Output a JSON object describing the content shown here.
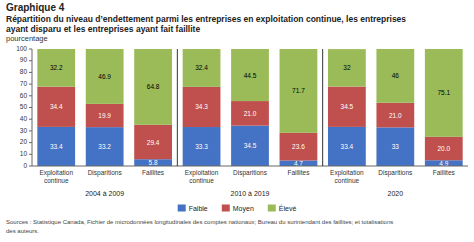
{
  "chart_data": {
    "type": "bar",
    "stacked": true,
    "title": "Graphique 4",
    "subtitle": [
      "Répartition du niveau d’endettement parmi les entreprises en exploitation continue, les entreprises",
      "ayant disparu et les entreprises ayant fait faillite"
    ],
    "y_label": "pourcentage",
    "source": "Sources : Statistique Canada, Fichier de microdonnées longitudinales des comptes nationaux; Bureau du surintendant des faillites; et totalisations\ndes auteurs.",
    "categories": [
      "Exploitation\ncontinue",
      "Disparitions",
      "Faillites",
      "Exploitation\ncontinue",
      "Disparitions",
      "Faillites",
      "Exploitation\ncontinue",
      "Disparitions",
      "Faillites"
    ],
    "category_groups": [
      "2004 à 2009",
      "2010 à 2019",
      "2020"
    ],
    "series": [
      {
        "name": "Faible",
        "color": "#4472c4",
        "values": [
          33.4,
          33.2,
          5.8,
          33.3,
          34.5,
          4.7,
          33.4,
          33.0,
          4.9
        ]
      },
      {
        "name": "Moyen",
        "color": "#c0504d",
        "values": [
          34.4,
          19.9,
          29.4,
          34.3,
          21.0,
          23.6,
          34.5,
          21.0,
          20.0
        ],
        "value_labels": [
          "34.4",
          "19.9",
          "29.4",
          "34.3",
          "21.0",
          "23.6",
          "34.5",
          "21.0",
          "20.0"
        ]
      },
      {
        "name": "Élevé",
        "color": "#9bbb59",
        "values": [
          32.2,
          46.9,
          64.8,
          32.4,
          44.5,
          71.7,
          32.0,
          46.0,
          75.1
        ]
      }
    ],
    "ylim": [
      0,
      100
    ],
    "yticks": [
      0,
      10,
      20,
      30,
      40,
      50,
      60,
      70,
      80,
      90,
      100
    ],
    "grid": false,
    "legend": "bottom",
    "data_labels": true
  }
}
